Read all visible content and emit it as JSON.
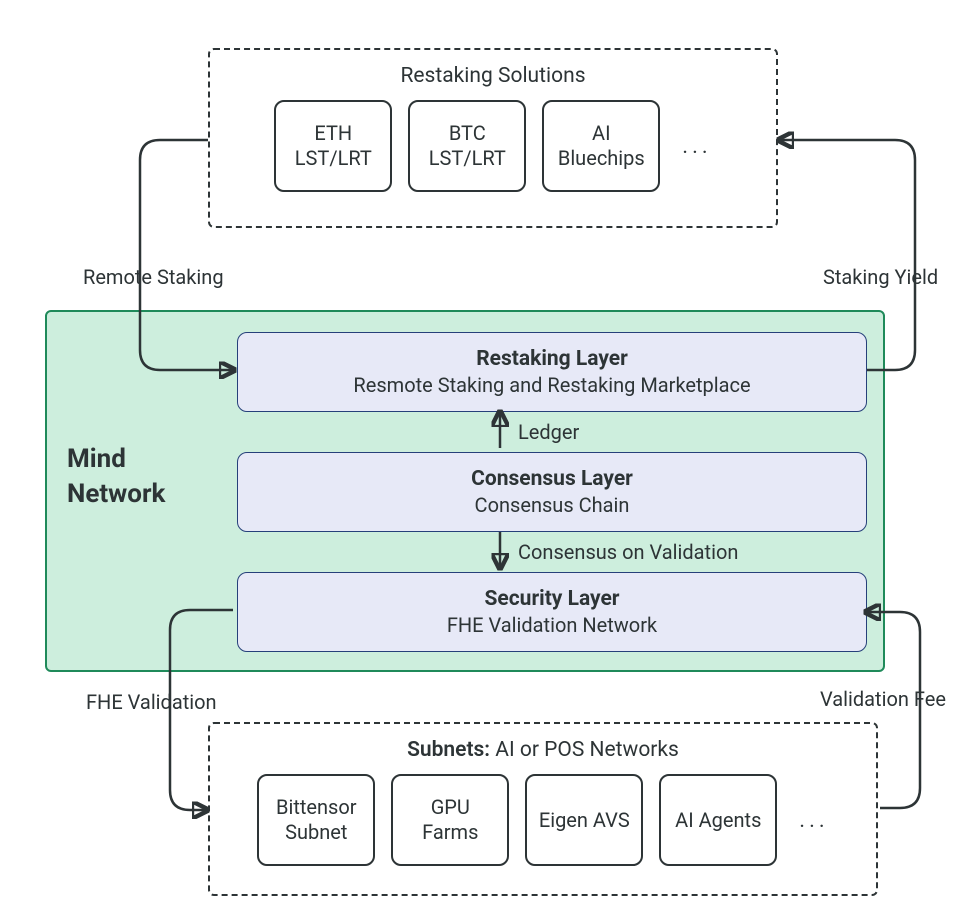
{
  "diagram": {
    "type": "flowchart",
    "background": "#ffffff",
    "text_color": "#2d3436",
    "stroke_color": "#2d3436",
    "mind_box": {
      "fill": "#cdeedd",
      "border": "#1f8a5a",
      "label": "Mind\nNetwork"
    },
    "layers": [
      {
        "id": "restaking",
        "title": "Restaking Layer",
        "sub": "Resmote Staking and Restaking Marketplace",
        "fill": "#e7e9f7",
        "border": "#26407a"
      },
      {
        "id": "consensus",
        "title": "Consensus Layer",
        "sub": "Consensus Chain",
        "fill": "#e7e9f7",
        "border": "#26407a"
      },
      {
        "id": "security",
        "title": "Security Layer",
        "sub": "FHE Validation Network",
        "fill": "#e7e9f7",
        "border": "#26407a"
      }
    ],
    "top_group": {
      "title": "Restaking Solutions",
      "border_style": "dashed",
      "items": [
        "ETH\nLST/LRT",
        "BTC\nLST/LRT",
        "AI\nBluechips"
      ],
      "ellipsis": "..."
    },
    "bottom_group": {
      "title_prefix": "Subnets:",
      "title_rest": " AI or POS Networks",
      "border_style": "dashed",
      "items": [
        "Bittensor\nSubnet",
        "GPU\nFarms",
        "Eigen AVS",
        "AI Agents"
      ],
      "ellipsis": "..."
    },
    "edge_labels": {
      "remote_staking": "Remote Staking",
      "staking_yield": "Staking Yield",
      "ledger": "Ledger",
      "consensus_validation": "Consensus on Validation",
      "fhe_validation": "FHE Validation",
      "validation_fee": "Validation Fee"
    },
    "font_sizes": {
      "group_title": 21,
      "card": 20,
      "layer_title": 21,
      "layer_sub": 20,
      "edge_label": 20,
      "mind_label": 26
    }
  }
}
